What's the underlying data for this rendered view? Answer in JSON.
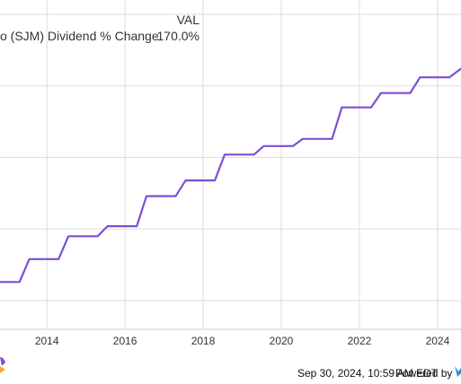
{
  "legend": {
    "header": "VAL",
    "series_label": "o (SJM) Dividend % Change",
    "value": "170.0%"
  },
  "footer": {
    "timestamp": "Sep 30, 2024, 10:59 AM EDT",
    "powered_by": "Powered by"
  },
  "colors": {
    "line": "#7b4fd6",
    "grid": "#dddddd",
    "accent_logo": "#2f8fd6"
  },
  "chart_data": {
    "type": "line",
    "x_ticks": [
      "2014",
      "2016",
      "2018",
      "2020",
      "2022",
      "2024"
    ],
    "xlim": [
      2012.8,
      2024.6
    ],
    "ylim": [
      -10,
      220
    ],
    "y_gridlines": [
      10,
      60,
      110,
      160,
      210
    ],
    "grid": true,
    "series": [
      {
        "name": "o (SJM) Dividend % Change",
        "x": [
          2012.8,
          2013.3,
          2013.55,
          2014.3,
          2014.55,
          2015.3,
          2015.55,
          2016.3,
          2016.55,
          2017.3,
          2017.55,
          2018.3,
          2018.55,
          2019.3,
          2019.55,
          2020.3,
          2020.55,
          2021.3,
          2021.55,
          2022.3,
          2022.55,
          2023.3,
          2023.55,
          2024.3,
          2024.6
        ],
        "y": [
          23,
          23,
          39,
          39,
          55,
          55,
          62,
          62,
          83,
          83,
          94,
          94,
          112,
          112,
          118,
          118,
          123,
          123,
          145,
          145,
          155,
          155,
          166,
          166,
          172
        ]
      }
    ]
  }
}
